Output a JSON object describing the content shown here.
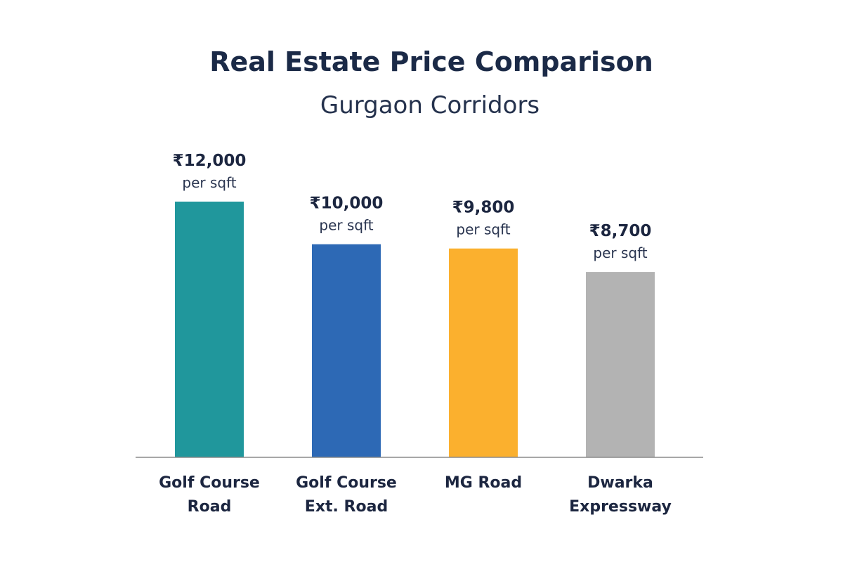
{
  "chart_data": {
    "type": "bar",
    "title": "Real Estate Price Comparison",
    "subtitle": "Gurgaon Corridors",
    "categories": [
      [
        "Golf Course",
        "Road"
      ],
      [
        "Golf Course",
        "Ext. Road"
      ],
      [
        "MG Road"
      ],
      [
        "Dwarka",
        "Expressway"
      ]
    ],
    "values": [
      12000,
      10000,
      9800,
      8700
    ],
    "value_labels": [
      "₹12,000",
      "₹10,000",
      "₹9,800",
      "₹8,700"
    ],
    "unit_label": "per sqft",
    "colors": [
      "#20979c",
      "#2d69b5",
      "#fbb02e",
      "#b3b3b3"
    ],
    "ylim": [
      0,
      12000
    ],
    "xlabel": "",
    "ylabel": "",
    "grid": false,
    "legend": "none"
  }
}
